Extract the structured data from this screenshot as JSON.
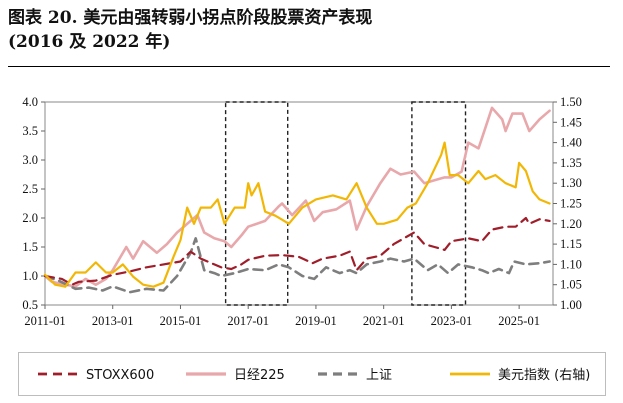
{
  "title": {
    "line1": "图表 20. 美元由强转弱小拐点阶段股票资产表现",
    "line2": "(2016 及 2022 年)"
  },
  "chart_data": {
    "type": "line",
    "x_ticks": [
      "2011-01",
      "2013-01",
      "2015-01",
      "2017-01",
      "2019-01",
      "2021-01",
      "2023-01",
      "2025-01"
    ],
    "x_range": [
      "2011-01",
      "2025-12"
    ],
    "y_left": {
      "ylim": [
        0.5,
        4.0
      ],
      "ticks": [
        "0.5",
        "1.0",
        "1.5",
        "2.0",
        "2.5",
        "3.0",
        "3.5",
        "4.0"
      ]
    },
    "y_right": {
      "ylim": [
        1.0,
        1.5
      ],
      "ticks": [
        "1.00",
        "1.05",
        "1.10",
        "1.15",
        "1.20",
        "1.25",
        "1.30",
        "1.35",
        "1.40",
        "1.45",
        "1.50"
      ]
    },
    "highlight_periods": [
      {
        "start": "2016-05",
        "end": "2018-03"
      },
      {
        "start": "2021-11",
        "end": "2023-06"
      }
    ],
    "series": [
      {
        "name": "STOXX600",
        "axis": "left",
        "color": "#a01d2a",
        "dash": "9,6",
        "width": 2.2,
        "points": [
          [
            2011.0,
            1.0
          ],
          [
            2011.5,
            0.95
          ],
          [
            2011.8,
            0.85
          ],
          [
            2012.0,
            0.9
          ],
          [
            2012.5,
            0.92
          ],
          [
            2013.0,
            1.02
          ],
          [
            2013.5,
            1.08
          ],
          [
            2014.0,
            1.15
          ],
          [
            2014.5,
            1.2
          ],
          [
            2015.0,
            1.25
          ],
          [
            2015.3,
            1.42
          ],
          [
            2015.6,
            1.3
          ],
          [
            2016.0,
            1.2
          ],
          [
            2016.2,
            1.15
          ],
          [
            2016.5,
            1.12
          ],
          [
            2016.8,
            1.2
          ],
          [
            2017.0,
            1.28
          ],
          [
            2017.5,
            1.35
          ],
          [
            2018.0,
            1.36
          ],
          [
            2018.5,
            1.33
          ],
          [
            2018.9,
            1.22
          ],
          [
            2019.2,
            1.3
          ],
          [
            2019.7,
            1.35
          ],
          [
            2020.0,
            1.42
          ],
          [
            2020.2,
            1.1
          ],
          [
            2020.5,
            1.3
          ],
          [
            2020.9,
            1.35
          ],
          [
            2021.3,
            1.55
          ],
          [
            2021.9,
            1.75
          ],
          [
            2022.2,
            1.55
          ],
          [
            2022.5,
            1.5
          ],
          [
            2022.8,
            1.45
          ],
          [
            2023.0,
            1.6
          ],
          [
            2023.5,
            1.65
          ],
          [
            2023.9,
            1.6
          ],
          [
            2024.2,
            1.8
          ],
          [
            2024.6,
            1.85
          ],
          [
            2024.9,
            1.85
          ],
          [
            2025.2,
            2.0
          ],
          [
            2025.3,
            1.9
          ],
          [
            2025.6,
            1.98
          ],
          [
            2025.9,
            1.95
          ]
        ]
      },
      {
        "name": "日经225",
        "axis": "left",
        "color": "#e8a8ab",
        "dash": "",
        "width": 2.6,
        "points": [
          [
            2011.0,
            1.0
          ],
          [
            2011.2,
            0.9
          ],
          [
            2011.6,
            0.85
          ],
          [
            2011.9,
            0.82
          ],
          [
            2012.2,
            0.95
          ],
          [
            2012.5,
            0.85
          ],
          [
            2012.8,
            0.95
          ],
          [
            2013.0,
            1.1
          ],
          [
            2013.4,
            1.5
          ],
          [
            2013.6,
            1.3
          ],
          [
            2013.9,
            1.6
          ],
          [
            2014.3,
            1.4
          ],
          [
            2014.6,
            1.55
          ],
          [
            2014.9,
            1.75
          ],
          [
            2015.3,
            1.95
          ],
          [
            2015.5,
            2.05
          ],
          [
            2015.7,
            1.75
          ],
          [
            2016.0,
            1.65
          ],
          [
            2016.3,
            1.6
          ],
          [
            2016.5,
            1.5
          ],
          [
            2016.8,
            1.7
          ],
          [
            2017.0,
            1.85
          ],
          [
            2017.5,
            1.95
          ],
          [
            2017.9,
            2.2
          ],
          [
            2018.0,
            2.25
          ],
          [
            2018.3,
            2.05
          ],
          [
            2018.7,
            2.3
          ],
          [
            2018.95,
            1.95
          ],
          [
            2019.2,
            2.1
          ],
          [
            2019.6,
            2.15
          ],
          [
            2020.0,
            2.3
          ],
          [
            2020.2,
            1.8
          ],
          [
            2020.5,
            2.2
          ],
          [
            2020.9,
            2.6
          ],
          [
            2021.2,
            2.85
          ],
          [
            2021.5,
            2.75
          ],
          [
            2021.9,
            2.8
          ],
          [
            2022.2,
            2.6
          ],
          [
            2022.5,
            2.65
          ],
          [
            2022.8,
            2.7
          ],
          [
            2023.0,
            2.7
          ],
          [
            2023.3,
            2.8
          ],
          [
            2023.5,
            3.3
          ],
          [
            2023.8,
            3.2
          ],
          [
            2024.0,
            3.55
          ],
          [
            2024.2,
            3.9
          ],
          [
            2024.5,
            3.7
          ],
          [
            2024.6,
            3.5
          ],
          [
            2024.8,
            3.8
          ],
          [
            2025.1,
            3.8
          ],
          [
            2025.3,
            3.5
          ],
          [
            2025.6,
            3.7
          ],
          [
            2025.9,
            3.85
          ]
        ]
      },
      {
        "name": "上证",
        "axis": "left",
        "color": "#7e7e7e",
        "dash": "9,6",
        "width": 2.6,
        "points": [
          [
            2011.0,
            1.0
          ],
          [
            2011.4,
            0.92
          ],
          [
            2011.9,
            0.78
          ],
          [
            2012.3,
            0.8
          ],
          [
            2012.7,
            0.75
          ],
          [
            2013.0,
            0.82
          ],
          [
            2013.5,
            0.72
          ],
          [
            2014.0,
            0.78
          ],
          [
            2014.5,
            0.75
          ],
          [
            2014.9,
            1.0
          ],
          [
            2015.3,
            1.4
          ],
          [
            2015.45,
            1.65
          ],
          [
            2015.7,
            1.1
          ],
          [
            2016.0,
            1.05
          ],
          [
            2016.2,
            1.0
          ],
          [
            2016.6,
            1.05
          ],
          [
            2017.0,
            1.12
          ],
          [
            2017.5,
            1.1
          ],
          [
            2017.9,
            1.2
          ],
          [
            2018.2,
            1.15
          ],
          [
            2018.6,
            1.0
          ],
          [
            2018.95,
            0.95
          ],
          [
            2019.3,
            1.15
          ],
          [
            2019.7,
            1.05
          ],
          [
            2020.0,
            1.1
          ],
          [
            2020.2,
            1.05
          ],
          [
            2020.5,
            1.2
          ],
          [
            2020.9,
            1.25
          ],
          [
            2021.2,
            1.3
          ],
          [
            2021.6,
            1.25
          ],
          [
            2021.9,
            1.3
          ],
          [
            2022.3,
            1.1
          ],
          [
            2022.6,
            1.2
          ],
          [
            2022.9,
            1.05
          ],
          [
            2023.2,
            1.2
          ],
          [
            2023.6,
            1.15
          ],
          [
            2023.9,
            1.1
          ],
          [
            2024.1,
            1.05
          ],
          [
            2024.4,
            1.12
          ],
          [
            2024.7,
            1.05
          ],
          [
            2024.85,
            1.25
          ],
          [
            2025.2,
            1.2
          ],
          [
            2025.6,
            1.22
          ],
          [
            2025.9,
            1.25
          ]
        ]
      },
      {
        "name": "美元指数 (右轴)",
        "axis": "right",
        "color": "#f2b705",
        "dash": "",
        "width": 2.2,
        "points": [
          [
            2011.0,
            1.075
          ],
          [
            2011.3,
            1.05
          ],
          [
            2011.6,
            1.045
          ],
          [
            2011.9,
            1.08
          ],
          [
            2012.2,
            1.08
          ],
          [
            2012.5,
            1.105
          ],
          [
            2012.8,
            1.08
          ],
          [
            2013.0,
            1.08
          ],
          [
            2013.3,
            1.1
          ],
          [
            2013.6,
            1.07
          ],
          [
            2013.9,
            1.05
          ],
          [
            2014.2,
            1.045
          ],
          [
            2014.5,
            1.055
          ],
          [
            2014.8,
            1.12
          ],
          [
            2015.0,
            1.16
          ],
          [
            2015.2,
            1.24
          ],
          [
            2015.4,
            1.2
          ],
          [
            2015.6,
            1.24
          ],
          [
            2015.9,
            1.24
          ],
          [
            2016.1,
            1.26
          ],
          [
            2016.3,
            1.2
          ],
          [
            2016.6,
            1.24
          ],
          [
            2016.9,
            1.24
          ],
          [
            2017.0,
            1.3
          ],
          [
            2017.1,
            1.27
          ],
          [
            2017.3,
            1.3
          ],
          [
            2017.5,
            1.23
          ],
          [
            2017.8,
            1.22
          ],
          [
            2018.0,
            1.21
          ],
          [
            2018.2,
            1.2
          ],
          [
            2018.6,
            1.24
          ],
          [
            2019.0,
            1.26
          ],
          [
            2019.5,
            1.27
          ],
          [
            2019.9,
            1.26
          ],
          [
            2020.2,
            1.3
          ],
          [
            2020.5,
            1.24
          ],
          [
            2020.8,
            1.2
          ],
          [
            2021.0,
            1.2
          ],
          [
            2021.4,
            1.21
          ],
          [
            2021.7,
            1.24
          ],
          [
            2021.95,
            1.25
          ],
          [
            2022.3,
            1.3
          ],
          [
            2022.7,
            1.37
          ],
          [
            2022.8,
            1.4
          ],
          [
            2022.95,
            1.32
          ],
          [
            2023.2,
            1.32
          ],
          [
            2023.5,
            1.3
          ],
          [
            2023.8,
            1.33
          ],
          [
            2024.0,
            1.31
          ],
          [
            2024.3,
            1.32
          ],
          [
            2024.6,
            1.3
          ],
          [
            2024.9,
            1.29
          ],
          [
            2025.0,
            1.35
          ],
          [
            2025.2,
            1.33
          ],
          [
            2025.4,
            1.28
          ],
          [
            2025.6,
            1.26
          ],
          [
            2025.9,
            1.25
          ]
        ]
      }
    ]
  }
}
